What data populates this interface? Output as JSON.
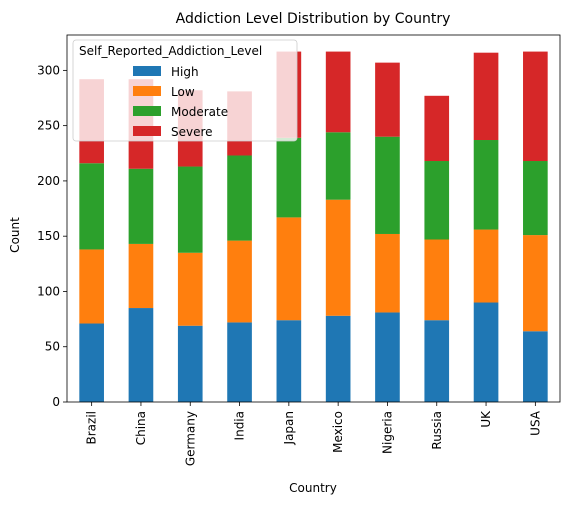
{
  "chart_data": {
    "type": "bar",
    "stacked": true,
    "title": "Addiction Level Distribution by Country",
    "xlabel": "Country",
    "ylabel": "Count",
    "ylim": [
      0,
      332
    ],
    "yticks": [
      0,
      50,
      100,
      150,
      200,
      250,
      300
    ],
    "categories": [
      "Brazil",
      "China",
      "Germany",
      "India",
      "Japan",
      "Mexico",
      "Nigeria",
      "Russia",
      "UK",
      "USA"
    ],
    "legend": {
      "title": "Self_Reported_Addiction_Level",
      "placement": "top-left"
    },
    "series": [
      {
        "name": "High",
        "color": "#1f77b4",
        "values": [
          71,
          85,
          69,
          72,
          74,
          78,
          81,
          74,
          90,
          64
        ]
      },
      {
        "name": "Low",
        "color": "#ff7f0e",
        "values": [
          67,
          58,
          66,
          74,
          93,
          105,
          71,
          73,
          66,
          87
        ]
      },
      {
        "name": "Moderate",
        "color": "#2ca02c",
        "values": [
          78,
          68,
          78,
          77,
          72,
          61,
          88,
          71,
          81,
          67
        ]
      },
      {
        "name": "Severe",
        "color": "#d62728",
        "values": [
          76,
          81,
          69,
          58,
          78,
          73,
          67,
          59,
          79,
          99
        ]
      }
    ]
  }
}
